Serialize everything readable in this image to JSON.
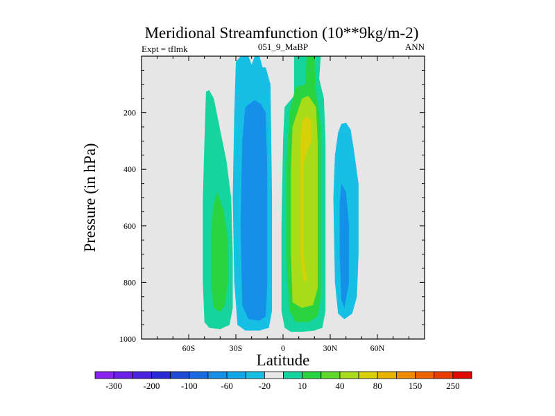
{
  "chart_data": {
    "type": "contour",
    "title": "Meridional Streamfunction (10**9kg/m-2)",
    "left_label": "Expt = tflmk",
    "center_label": "051_9_MaBP",
    "right_label": "ANN",
    "xlabel": "Latitude",
    "ylabel": "Pressure (in hPa)",
    "xlim": [
      -90,
      90
    ],
    "ylim": [
      1000,
      0
    ],
    "x_ticks": [
      {
        "value": -60,
        "label": "60S"
      },
      {
        "value": -30,
        "label": "30S"
      },
      {
        "value": 0,
        "label": "0"
      },
      {
        "value": 30,
        "label": "30N"
      },
      {
        "value": 60,
        "label": "60N"
      }
    ],
    "y_ticks": [
      {
        "value": 200,
        "label": "200"
      },
      {
        "value": 400,
        "label": "400"
      },
      {
        "value": 600,
        "label": "600"
      },
      {
        "value": 800,
        "label": "800"
      },
      {
        "value": 1000,
        "label": "1000"
      }
    ],
    "background_color": "#e6e6e6",
    "colorbar": {
      "colors": [
        "#8a22ee",
        "#6a1ee8",
        "#4a22e2",
        "#2a2ad8",
        "#1e4ad8",
        "#1a6ae0",
        "#1490e8",
        "#12a8e8",
        "#16c0e4",
        "#e6e6e6",
        "#16d4a0",
        "#2ad440",
        "#60d82a",
        "#a8dc18",
        "#d8d008",
        "#e8b200",
        "#f08a00",
        "#f06400",
        "#ea3c00",
        "#e00a00"
      ],
      "labels": [
        {
          "boundary": 1,
          "text": "-300"
        },
        {
          "boundary": 3,
          "text": "-200"
        },
        {
          "boundary": 5,
          "text": "-100"
        },
        {
          "boundary": 7,
          "text": "-60"
        },
        {
          "boundary": 9,
          "text": "-20"
        },
        {
          "boundary": 11,
          "text": "10"
        },
        {
          "boundary": 13,
          "text": "40"
        },
        {
          "boundary": 15,
          "text": "80"
        },
        {
          "boundary": 17,
          "text": "150"
        },
        {
          "boundary": 19,
          "text": "250"
        }
      ]
    },
    "regions": [
      {
        "name": "southern-band-outer",
        "color": "#16d4a0",
        "points": [
          [
            -49,
            125
          ],
          [
            -47,
            120
          ],
          [
            -44,
            150
          ],
          [
            -40,
            260
          ],
          [
            -36,
            370
          ],
          [
            -33,
            500
          ],
          [
            -32,
            700
          ],
          [
            -32,
            890
          ],
          [
            -34,
            950
          ],
          [
            -40,
            965
          ],
          [
            -47,
            960
          ],
          [
            -50,
            940
          ],
          [
            -51,
            800
          ],
          [
            -51,
            500
          ],
          [
            -50,
            300
          ]
        ]
      },
      {
        "name": "southern-band-inner",
        "color": "#2ad440",
        "points": [
          [
            -42,
            480
          ],
          [
            -38,
            540
          ],
          [
            -35,
            650
          ],
          [
            -35,
            800
          ],
          [
            -37,
            880
          ],
          [
            -40,
            905
          ],
          [
            -44,
            890
          ],
          [
            -46,
            800
          ],
          [
            -46,
            620
          ],
          [
            -44,
            520
          ]
        ]
      },
      {
        "name": "southern-cell-outer",
        "color": "#16c0e4",
        "points": [
          [
            -30,
            20
          ],
          [
            -27,
            0
          ],
          [
            -22,
            0
          ],
          [
            -20,
            30
          ],
          [
            -18,
            0
          ],
          [
            -15,
            0
          ],
          [
            -13,
            40
          ],
          [
            -11,
            40
          ],
          [
            -8,
            100
          ],
          [
            -7,
            500
          ],
          [
            -7,
            900
          ],
          [
            -9,
            960
          ],
          [
            -15,
            970
          ],
          [
            -24,
            970
          ],
          [
            -29,
            950
          ],
          [
            -31,
            800
          ],
          [
            -32,
            500
          ],
          [
            -31,
            200
          ]
        ]
      },
      {
        "name": "southern-cell-inner",
        "color": "#1490e8",
        "points": [
          [
            -24,
            180
          ],
          [
            -18,
            155
          ],
          [
            -14,
            170
          ],
          [
            -11,
            200
          ],
          [
            -10,
            400
          ],
          [
            -10,
            800
          ],
          [
            -11,
            920
          ],
          [
            -15,
            935
          ],
          [
            -22,
            930
          ],
          [
            -26,
            880
          ],
          [
            -27,
            600
          ],
          [
            -26,
            300
          ]
        ]
      },
      {
        "name": "equatorial-cell-outer",
        "color": "#16d4a0",
        "points": [
          [
            4,
            160
          ],
          [
            7,
            140
          ],
          [
            7,
            0
          ],
          [
            24,
            0
          ],
          [
            23,
            80
          ],
          [
            26,
            150
          ],
          [
            27,
            300
          ],
          [
            27,
            600
          ],
          [
            27,
            900
          ],
          [
            25,
            960
          ],
          [
            20,
            970
          ],
          [
            12,
            975
          ],
          [
            5,
            975
          ],
          [
            1,
            960
          ],
          [
            -1,
            900
          ],
          [
            -1,
            600
          ],
          [
            0,
            300
          ],
          [
            1,
            180
          ]
        ]
      },
      {
        "name": "equatorial-cell-mid",
        "color": "#2ad440",
        "points": [
          [
            8,
            110
          ],
          [
            14,
            100
          ],
          [
            15,
            0
          ],
          [
            20,
            0
          ],
          [
            21,
            120
          ],
          [
            24,
            240
          ],
          [
            24,
            600
          ],
          [
            24,
            850
          ],
          [
            22,
            920
          ],
          [
            16,
            940
          ],
          [
            8,
            940
          ],
          [
            4,
            900
          ],
          [
            2,
            700
          ],
          [
            2,
            400
          ],
          [
            4,
            200
          ]
        ]
      },
      {
        "name": "equatorial-cell-inner",
        "color": "#a8dc18",
        "points": [
          [
            9,
            200
          ],
          [
            12,
            150
          ],
          [
            16,
            140
          ],
          [
            21,
            180
          ],
          [
            22,
            300
          ],
          [
            22,
            600
          ],
          [
            22,
            820
          ],
          [
            19,
            880
          ],
          [
            12,
            890
          ],
          [
            6,
            870
          ],
          [
            5,
            700
          ],
          [
            5,
            400
          ],
          [
            6,
            250
          ]
        ]
      },
      {
        "name": "equatorial-cell-core",
        "color": "#d8d008",
        "points": [
          [
            12,
            230
          ],
          [
            15,
            210
          ],
          [
            18,
            230
          ],
          [
            18,
            300
          ],
          [
            15,
            340
          ],
          [
            13,
            380
          ],
          [
            13,
            700
          ],
          [
            15,
            790
          ],
          [
            13,
            800
          ],
          [
            11,
            700
          ],
          [
            11,
            400
          ],
          [
            11,
            300
          ]
        ]
      },
      {
        "name": "northern-cell-outer",
        "color": "#16c0e4",
        "points": [
          [
            37,
            240
          ],
          [
            40,
            235
          ],
          [
            43,
            260
          ],
          [
            45,
            330
          ],
          [
            48,
            450
          ],
          [
            48,
            700
          ],
          [
            47,
            850
          ],
          [
            44,
            910
          ],
          [
            39,
            930
          ],
          [
            35,
            910
          ],
          [
            33,
            800
          ],
          [
            32,
            500
          ],
          [
            33,
            350
          ],
          [
            35,
            270
          ]
        ]
      },
      {
        "name": "northern-cell-inner",
        "color": "#1490e8",
        "points": [
          [
            37,
            450
          ],
          [
            40,
            480
          ],
          [
            42,
            600
          ],
          [
            42,
            800
          ],
          [
            39,
            890
          ],
          [
            37,
            860
          ],
          [
            36,
            700
          ],
          [
            36,
            520
          ]
        ]
      }
    ]
  }
}
